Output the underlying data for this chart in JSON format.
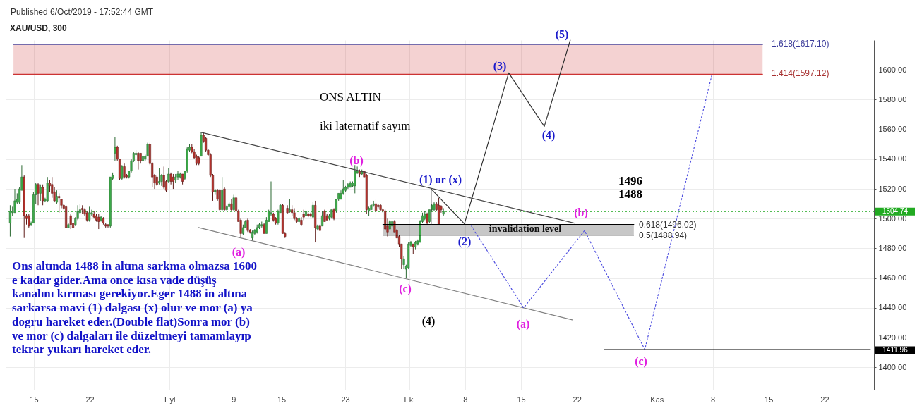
{
  "chart_data": {
    "type": "candlestick",
    "title": "XAU/USD, 300",
    "x": [
      "2019-08-12T01:00",
      "2019-08-12T08:00",
      "2019-08-12T15:00",
      "2019-08-12T22:00",
      "2019-08-13T05:00",
      "2019-08-13T12:00",
      "2019-08-13T19:00",
      "2019-08-14T02:00",
      "2019-08-14T09:00",
      "2019-08-14T16:00",
      "2019-08-14T23:00",
      "2019-08-15T06:00",
      "2019-08-15T13:00",
      "2019-08-15T20:00",
      "2019-08-16T03:00",
      "2019-08-16T10:00",
      "2019-08-16T17:00",
      "2019-08-17T00:00",
      "2019-08-17T07:00",
      "2019-08-17T14:00",
      "2019-08-17T21:00",
      "2019-08-18T04:00",
      "2019-08-18T11:00",
      "2019-08-18T18:00",
      "2019-08-19T01:00",
      "2019-08-19T08:00",
      "2019-08-19T15:00",
      "2019-08-19T22:00",
      "2019-08-20T05:00",
      "2019-08-20T12:00",
      "2019-08-20T19:00",
      "2019-08-21T02:00",
      "2019-08-21T09:00",
      "2019-08-21T16:00",
      "2019-08-21T23:00",
      "2019-08-22T06:00",
      "2019-08-22T13:00",
      "2019-08-22T20:00",
      "2019-08-23T03:00",
      "2019-08-23T10:00",
      "2019-08-23T17:00",
      "2019-08-24T00:00",
      "2019-08-24T07:00",
      "2019-08-24T14:00",
      "2019-08-24T21:00",
      "2019-08-25T04:00",
      "2019-08-25T11:00",
      "2019-08-25T18:00",
      "2019-08-26T01:00",
      "2019-08-26T08:00",
      "2019-08-26T15:00",
      "2019-08-26T22:00",
      "2019-08-27T05:00",
      "2019-08-27T12:00",
      "2019-08-27T19:00",
      "2019-08-28T02:00",
      "2019-08-28T09:00",
      "2019-08-28T16:00",
      "2019-08-28T23:00",
      "2019-08-29T06:00",
      "2019-08-29T13:00",
      "2019-08-29T20:00",
      "2019-08-30T03:00",
      "2019-08-30T10:00",
      "2019-08-30T17:00",
      "2019-08-31T00:00",
      "2019-08-31T07:00",
      "2019-08-31T14:00",
      "2019-08-31T21:00",
      "2019-09-01T04:00",
      "2019-09-01T11:00",
      "2019-09-01T18:00",
      "2019-09-02T01:00",
      "2019-09-02T08:00",
      "2019-09-02T15:00",
      "2019-09-02T22:00",
      "2019-09-03T05:00",
      "2019-09-03T12:00",
      "2019-09-03T19:00",
      "2019-09-04T02:00",
      "2019-09-04T09:00",
      "2019-09-04T16:00",
      "2019-09-04T23:00",
      "2019-09-05T06:00",
      "2019-09-05T13:00",
      "2019-09-05T20:00",
      "2019-09-06T03:00",
      "2019-09-06T10:00",
      "2019-09-06T17:00",
      "2019-09-07T00:00",
      "2019-09-07T07:00",
      "2019-09-07T14:00",
      "2019-09-07T21:00",
      "2019-09-08T04:00",
      "2019-09-08T11:00",
      "2019-09-08T18:00",
      "2019-09-09T01:00",
      "2019-09-09T08:00",
      "2019-09-09T15:00",
      "2019-09-09T22:00",
      "2019-09-10T05:00",
      "2019-09-10T12:00",
      "2019-09-10T19:00",
      "2019-09-11T02:00",
      "2019-09-11T09:00",
      "2019-09-11T16:00",
      "2019-09-11T23:00",
      "2019-09-12T06:00",
      "2019-09-12T13:00",
      "2019-09-12T20:00",
      "2019-09-13T03:00",
      "2019-09-13T10:00",
      "2019-09-13T17:00",
      "2019-09-14T00:00",
      "2019-09-14T07:00",
      "2019-09-14T14:00",
      "2019-09-14T21:00",
      "2019-09-15T04:00",
      "2019-09-15T11:00",
      "2019-09-15T18:00",
      "2019-09-16T01:00",
      "2019-09-16T08:00",
      "2019-09-16T15:00",
      "2019-09-16T22:00",
      "2019-09-17T05:00",
      "2019-09-17T12:00",
      "2019-09-17T19:00",
      "2019-09-18T02:00",
      "2019-09-18T09:00",
      "2019-09-18T16:00",
      "2019-09-18T23:00",
      "2019-09-19T06:00",
      "2019-09-19T13:00",
      "2019-09-19T20:00",
      "2019-09-20T03:00",
      "2019-09-20T10:00",
      "2019-09-20T17:00",
      "2019-09-21T00:00",
      "2019-09-21T07:00",
      "2019-09-21T14:00",
      "2019-09-21T21:00",
      "2019-09-22T04:00",
      "2019-09-22T11:00",
      "2019-09-22T18:00",
      "2019-09-23T01:00",
      "2019-09-23T08:00",
      "2019-09-23T15:00",
      "2019-09-23T22:00",
      "2019-09-24T05:00",
      "2019-09-24T12:00",
      "2019-09-24T19:00",
      "2019-09-25T02:00",
      "2019-09-25T09:00",
      "2019-09-25T16:00",
      "2019-09-25T23:00",
      "2019-09-26T06:00",
      "2019-09-26T13:00",
      "2019-09-26T20:00",
      "2019-09-27T03:00",
      "2019-09-27T10:00",
      "2019-09-27T17:00",
      "2019-09-28T00:00",
      "2019-09-28T07:00",
      "2019-09-28T14:00",
      "2019-09-28T21:00",
      "2019-09-29T04:00",
      "2019-09-29T11:00",
      "2019-09-29T18:00",
      "2019-09-30T01:00",
      "2019-09-30T08:00",
      "2019-09-30T15:00",
      "2019-09-30T22:00",
      "2019-10-01T05:00",
      "2019-10-01T12:00",
      "2019-10-01T19:00",
      "2019-10-02T02:00",
      "2019-10-02T09:00",
      "2019-10-02T16:00",
      "2019-10-02T23:00",
      "2019-10-03T06:00",
      "2019-10-03T13:00",
      "2019-10-03T20:00",
      "2019-10-04T03:00",
      "2019-10-04T10:00",
      "2019-10-04T17:00",
      "2019-10-05T00:00",
      "2019-10-05T07:00"
    ],
    "ohlc": [
      [
        1497,
        1509,
        1488,
        1505
      ],
      [
        1504,
        1508,
        1502,
        1505
      ],
      [
        1504,
        1520,
        1504,
        1512
      ],
      [
        1511,
        1517,
        1510,
        1513
      ],
      [
        1511,
        1521,
        1510,
        1520
      ],
      [
        1519,
        1536,
        1519,
        1528
      ],
      [
        1528,
        1529,
        1487,
        1502
      ],
      [
        1502,
        1503,
        1496,
        1500
      ],
      [
        1502,
        1503,
        1494,
        1495
      ],
      [
        1496,
        1498,
        1495,
        1497
      ],
      [
        1497,
        1518,
        1497,
        1516
      ],
      [
        1516,
        1524,
        1510,
        1523
      ],
      [
        1523,
        1524,
        1509,
        1517
      ],
      [
        1517,
        1523,
        1512,
        1521
      ],
      [
        1521,
        1523,
        1509,
        1512
      ],
      [
        1512,
        1514,
        1511,
        1513
      ],
      [
        1512,
        1528,
        1511,
        1524
      ],
      [
        1524,
        1526,
        1518,
        1522
      ],
      [
        1523,
        1528,
        1514,
        1517
      ],
      [
        1518,
        1521,
        1511,
        1512
      ],
      [
        1511,
        1519,
        1510,
        1515
      ],
      [
        1515,
        1517,
        1504,
        1514
      ],
      [
        1513,
        1513,
        1507,
        1509
      ],
      [
        1509,
        1510,
        1506,
        1507
      ],
      [
        1508,
        1509,
        1494,
        1494
      ],
      [
        1494,
        1497,
        1494,
        1496
      ],
      [
        1502,
        1503,
        1493,
        1496
      ],
      [
        1497,
        1498,
        1493,
        1494
      ],
      [
        1496,
        1501,
        1495,
        1500
      ],
      [
        1500,
        1509,
        1499,
        1505
      ],
      [
        1504,
        1510,
        1503,
        1506
      ],
      [
        1507,
        1509,
        1503,
        1506
      ],
      [
        1506,
        1507,
        1502,
        1503
      ],
      [
        1504,
        1505,
        1498,
        1499
      ],
      [
        1499,
        1508,
        1498,
        1504
      ],
      [
        1503,
        1506,
        1502,
        1504
      ],
      [
        1503,
        1505,
        1500,
        1501
      ],
      [
        1502,
        1503,
        1498,
        1499
      ],
      [
        1501,
        1503,
        1493,
        1498
      ],
      [
        1499,
        1502,
        1498,
        1501
      ],
      [
        1500,
        1501,
        1496,
        1497
      ],
      [
        1496,
        1497,
        1494,
        1495
      ],
      [
        1496,
        1496,
        1494,
        1495
      ],
      [
        1495,
        1528,
        1494,
        1528
      ],
      [
        1527,
        1531,
        1526,
        1529
      ],
      [
        1544,
        1555,
        1539,
        1548
      ],
      [
        1548,
        1549,
        1539,
        1540
      ],
      [
        1540,
        1540,
        1526,
        1527
      ],
      [
        1527,
        1536,
        1526,
        1535
      ],
      [
        1535,
        1537,
        1527,
        1528
      ],
      [
        1529,
        1530,
        1527,
        1528
      ],
      [
        1528,
        1532,
        1527,
        1532
      ],
      [
        1532,
        1540,
        1531,
        1539
      ],
      [
        1539,
        1545,
        1538,
        1544
      ],
      [
        1543,
        1546,
        1542,
        1544
      ],
      [
        1544,
        1545,
        1533,
        1539
      ],
      [
        1544,
        1544,
        1537,
        1539
      ],
      [
        1539,
        1544,
        1534,
        1542
      ],
      [
        1540,
        1543,
        1539,
        1542
      ],
      [
        1542,
        1551,
        1542,
        1550
      ],
      [
        1550,
        1551,
        1536,
        1537
      ],
      [
        1537,
        1538,
        1521,
        1528
      ],
      [
        1529,
        1530,
        1520,
        1524
      ],
      [
        1528,
        1529,
        1522,
        1523
      ],
      [
        1524,
        1534,
        1523,
        1525
      ],
      [
        1525,
        1530,
        1522,
        1529
      ],
      [
        1529,
        1535,
        1520,
        1521
      ],
      [
        1525,
        1526,
        1518,
        1519
      ],
      [
        1525,
        1534,
        1524,
        1530
      ],
      [
        1530,
        1531,
        1523,
        1525
      ],
      [
        1528,
        1530,
        1520,
        1525
      ],
      [
        1526,
        1530,
        1524,
        1528
      ],
      [
        1528,
        1532,
        1526,
        1530
      ],
      [
        1528,
        1531,
        1527,
        1530
      ],
      [
        1530,
        1530,
        1523,
        1525
      ],
      [
        1527,
        1532,
        1526,
        1532
      ],
      [
        1532,
        1548,
        1531,
        1547
      ],
      [
        1546,
        1550,
        1545,
        1548
      ],
      [
        1548,
        1550,
        1544,
        1545
      ],
      [
        1545,
        1547,
        1540,
        1541
      ],
      [
        1542,
        1543,
        1536,
        1537
      ],
      [
        1541,
        1542,
        1536,
        1537
      ],
      [
        1542,
        1558,
        1542,
        1556
      ],
      [
        1556,
        1558,
        1551,
        1552
      ],
      [
        1554,
        1555,
        1545,
        1546
      ],
      [
        1546,
        1547,
        1542,
        1543
      ],
      [
        1543,
        1544,
        1528,
        1529
      ],
      [
        1529,
        1530,
        1512,
        1518
      ],
      [
        1518,
        1520,
        1516,
        1519
      ],
      [
        1519,
        1520,
        1512,
        1513
      ],
      [
        1519,
        1520,
        1505,
        1506
      ],
      [
        1506,
        1528,
        1505,
        1519
      ],
      [
        1520,
        1521,
        1505,
        1506
      ],
      [
        1506,
        1509,
        1505,
        1508
      ],
      [
        1508,
        1511,
        1507,
        1510
      ],
      [
        1510,
        1513,
        1505,
        1506
      ],
      [
        1506,
        1516,
        1505,
        1514
      ],
      [
        1514,
        1517,
        1504,
        1505
      ],
      [
        1505,
        1506,
        1498,
        1498
      ],
      [
        1499,
        1500,
        1487,
        1490
      ],
      [
        1490,
        1496,
        1489,
        1494
      ],
      [
        1494,
        1499,
        1494,
        1498
      ],
      [
        1499,
        1500,
        1491,
        1492
      ],
      [
        1492,
        1493,
        1490,
        1491
      ],
      [
        1487,
        1492,
        1485,
        1491
      ],
      [
        1490,
        1493,
        1489,
        1492
      ],
      [
        1491,
        1496,
        1490,
        1494
      ],
      [
        1494,
        1497,
        1493,
        1496
      ],
      [
        1495,
        1498,
        1494,
        1496
      ],
      [
        1496,
        1497,
        1490,
        1490
      ],
      [
        1490,
        1501,
        1490,
        1499
      ],
      [
        1498,
        1506,
        1498,
        1505
      ],
      [
        1503,
        1525,
        1502,
        1504
      ],
      [
        1503,
        1504,
        1498,
        1499
      ],
      [
        1500,
        1501,
        1496,
        1497
      ],
      [
        1497,
        1506,
        1496,
        1505
      ],
      [
        1504,
        1510,
        1504,
        1509
      ],
      [
        1509,
        1510,
        1490,
        1490
      ],
      [
        1490,
        1491,
        1487,
        1488
      ],
      [
        1507,
        1509,
        1503,
        1504
      ],
      [
        1505,
        1513,
        1504,
        1506
      ],
      [
        1506,
        1509,
        1502,
        1504
      ],
      [
        1504,
        1507,
        1499,
        1500
      ],
      [
        1500,
        1501,
        1497,
        1498
      ],
      [
        1498,
        1501,
        1497,
        1500
      ],
      [
        1499,
        1501,
        1495,
        1496
      ],
      [
        1503,
        1506,
        1499,
        1501
      ],
      [
        1502,
        1507,
        1501,
        1505
      ],
      [
        1503,
        1504,
        1501,
        1502
      ],
      [
        1503,
        1504,
        1501,
        1502
      ],
      [
        1501,
        1511,
        1500,
        1509
      ],
      [
        1509,
        1512,
        1484,
        1494
      ],
      [
        1493,
        1496,
        1492,
        1495
      ],
      [
        1495,
        1496,
        1492,
        1492
      ],
      [
        1495,
        1505,
        1495,
        1502
      ],
      [
        1505,
        1506,
        1498,
        1498
      ],
      [
        1502,
        1503,
        1499,
        1499
      ],
      [
        1500,
        1503,
        1499,
        1502
      ],
      [
        1501,
        1506,
        1500,
        1506
      ],
      [
        1506,
        1507,
        1499,
        1500
      ],
      [
        1505,
        1513,
        1504,
        1513
      ],
      [
        1513,
        1517,
        1512,
        1517
      ],
      [
        1513,
        1519,
        1513,
        1517
      ],
      [
        1517,
        1526,
        1516,
        1520
      ],
      [
        1519,
        1522,
        1518,
        1521
      ],
      [
        1521,
        1524,
        1520,
        1523
      ],
      [
        1521,
        1525,
        1521,
        1524
      ],
      [
        1522,
        1525,
        1521,
        1524
      ],
      [
        1522,
        1536,
        1517,
        1532
      ],
      [
        1531,
        1535,
        1530,
        1532
      ],
      [
        1532,
        1533,
        1528,
        1530
      ],
      [
        1530,
        1533,
        1529,
        1532
      ],
      [
        1532,
        1532,
        1528,
        1528
      ],
      [
        1529,
        1530,
        1503,
        1506
      ],
      [
        1505,
        1508,
        1502,
        1507
      ],
      [
        1506,
        1510,
        1506,
        1509
      ],
      [
        1509,
        1512,
        1508,
        1510
      ],
      [
        1510,
        1513,
        1501,
        1505
      ],
      [
        1509,
        1510,
        1507,
        1508
      ],
      [
        1509,
        1510,
        1505,
        1506
      ],
      [
        1506,
        1507,
        1504,
        1505
      ],
      [
        1505,
        1506,
        1492,
        1493
      ],
      [
        1495,
        1500,
        1488,
        1491
      ],
      [
        1493,
        1499,
        1493,
        1498
      ],
      [
        1495,
        1498,
        1494,
        1498
      ],
      [
        1498,
        1499,
        1491,
        1491
      ],
      [
        1492,
        1493,
        1487,
        1487
      ],
      [
        1488,
        1489,
        1481,
        1483
      ],
      [
        1483,
        1483,
        1466,
        1473
      ],
      [
        1469,
        1475,
        1466,
        1473
      ],
      [
        1466,
        1469,
        1460,
        1468
      ],
      [
        1467,
        1484,
        1466,
        1483
      ],
      [
        1482,
        1485,
        1481,
        1484
      ],
      [
        1483,
        1483,
        1476,
        1481
      ],
      [
        1481,
        1485,
        1479,
        1484
      ],
      [
        1483,
        1486,
        1482,
        1485
      ],
      [
        1484,
        1499,
        1484,
        1498
      ],
      [
        1498,
        1504,
        1497,
        1502
      ],
      [
        1500,
        1505,
        1499,
        1503
      ],
      [
        1503,
        1504,
        1496,
        1497
      ],
      [
        1498,
        1506,
        1497,
        1506
      ],
      [
        1506,
        1510,
        1505,
        1509
      ],
      [
        1506,
        1511,
        1505,
        1510
      ],
      [
        1510,
        1511,
        1505,
        1506
      ],
      [
        1509,
        1514,
        1496,
        1496
      ],
      [
        1508,
        1509,
        1504,
        1506
      ],
      [
        1503,
        1507,
        1502,
        1504.74
      ]
    ],
    "series": [
      {
        "type": "line",
        "x": [
          "2019-08-12T11:00",
          "2019-11-14T06:00"
        ],
        "values": [
          1597.12,
          1597.12
        ],
        "lower": [
          1597.12,
          1597.12
        ],
        "upper": [
          1617.1,
          1617.1
        ],
        "color": "#cc3333"
      },
      {
        "type": "line",
        "x": [
          "2019-08-12T11:00",
          "2019-11-14T06:00"
        ],
        "values": [
          1617.1,
          1617.1
        ],
        "color": "#4b4ba0"
      },
      {
        "type": "line",
        "x": [
          "2019-09-27T17:00",
          "2019-10-29T03:00"
        ],
        "values": [
          1496.02,
          1496.02
        ],
        "lower": [
          1488.94,
          1488.94
        ],
        "upper": [
          1496.02,
          1496.02
        ],
        "color": "#000000"
      },
      {
        "type": "line",
        "x": [
          "2019-09-27T17:00",
          "2019-10-29T03:00"
        ],
        "values": [
          1488.94,
          1488.94
        ],
        "color": "#000000"
      },
      {
        "type": "line",
        "x": [
          "2019-09-04T23:00",
          "2019-10-21T16:00"
        ],
        "values": [
          1558,
          1497
        ],
        "color": "#444444"
      },
      {
        "type": "line",
        "x": [
          "2019-09-04T15:00",
          "2019-10-21T10:00"
        ],
        "values": [
          1494,
          1432
        ],
        "color": "#808080"
      },
      {
        "type": "line",
        "x": [
          "2019-10-03T18:00",
          "2019-10-03T18:00",
          "2019-10-07T22:00",
          "2019-10-13T11:00",
          "2019-10-17T22:00",
          "2019-10-21T04:00"
        ],
        "values": [
          1496,
          1520,
          1496.5,
          1598,
          1562,
          1620
        ],
        "color": "#333333"
      },
      {
        "type": "line",
        "line_style": "dotted",
        "x": [
          "2019-10-08T19:00",
          "2019-10-15T08:00",
          "2019-10-22T23:00",
          "2019-10-30T12:00",
          "2019-11-07T22:00"
        ],
        "values": [
          1495,
          1440,
          1492,
          1412,
          1597
        ],
        "color": "#5050e0"
      },
      {
        "type": "line",
        "x": [
          "2019-10-25T10:00",
          "2019-11-27T18:00"
        ],
        "values": [
          1411.96,
          1411.96
        ],
        "color": "#000000"
      }
    ],
    "ref_lines": [
      {
        "axis": "y",
        "value": 1504.74,
        "label": "1504.74",
        "color": "#22aa22",
        "line_style": "dotted"
      }
    ],
    "annotations": [
      "Published 6/Oct/2019 - 17:52:44 GMT",
      "ONS ALTIN",
      "iki laternatif sayım",
      "1496",
      "1488",
      "Ons altında 1488 in altına sarkma olmazsa 1600\ne kadar gider.Ama once kısa vade düşüş\nkanalını kırması gerekiyor.Eger 1488 in altına\nsarkarsa mavi (1) dalgası (x) olur ve mor (a) ya\ndogru hareket eder.(Double flat)Sonra mor (b)\nve mor (c) dalgaları ile düzeltmeyi tamamlayıp\ntekrar yukarı hareket eder.",
      "(a)",
      "(b)",
      "(c)",
      "(1) or (x)",
      "(2)",
      "(3)",
      "(4)",
      "(5)",
      "(4)",
      "(a)",
      "(b)",
      "(c)",
      "invalidation level",
      "0.618(1496.02)",
      "0.5(1488.94)",
      "1.618(1617.10)",
      "1.414(1597.12)",
      "1411.96"
    ],
    "xlim": [
      "2019-08-11T22:00",
      "2019-11-27T18:00"
    ],
    "xticks": [
      {
        "value": "2019-08-15",
        "label": "15"
      },
      {
        "value": "2019-08-22",
        "label": "22"
      },
      {
        "value": "2019-09-01",
        "label": "Eyl"
      },
      {
        "value": "2019-09-09",
        "label": "9"
      },
      {
        "value": "2019-09-15",
        "label": "15"
      },
      {
        "value": "2019-09-23",
        "label": "23"
      },
      {
        "value": "2019-10-01",
        "label": "Eki"
      },
      {
        "value": "2019-10-08",
        "label": "8"
      },
      {
        "value": "2019-10-15",
        "label": "15"
      },
      {
        "value": "2019-10-22",
        "label": "22"
      },
      {
        "value": "2019-11-01",
        "label": "Kas"
      },
      {
        "value": "2019-11-08",
        "label": "8"
      },
      {
        "value": "2019-11-15",
        "label": "15"
      },
      {
        "value": "2019-11-22",
        "label": "22"
      }
    ],
    "ylim": [
      1385,
      1620
    ],
    "yticks": [
      {
        "value": 1400,
        "label": "1400.00"
      },
      {
        "value": 1420,
        "label": "1420.00"
      },
      {
        "value": 1440,
        "label": "1440.00"
      },
      {
        "value": 1460,
        "label": "1460.00"
      },
      {
        "value": 1480,
        "label": "1480.00"
      },
      {
        "value": 1500,
        "label": "1500.00"
      },
      {
        "value": 1520,
        "label": "1520.00"
      },
      {
        "value": 1540,
        "label": "1540.00"
      },
      {
        "value": 1560,
        "label": "1560.00"
      },
      {
        "value": 1580,
        "label": "1580.00"
      },
      {
        "value": 1600,
        "label": "1600.00"
      }
    ],
    "grid": true
  }
}
